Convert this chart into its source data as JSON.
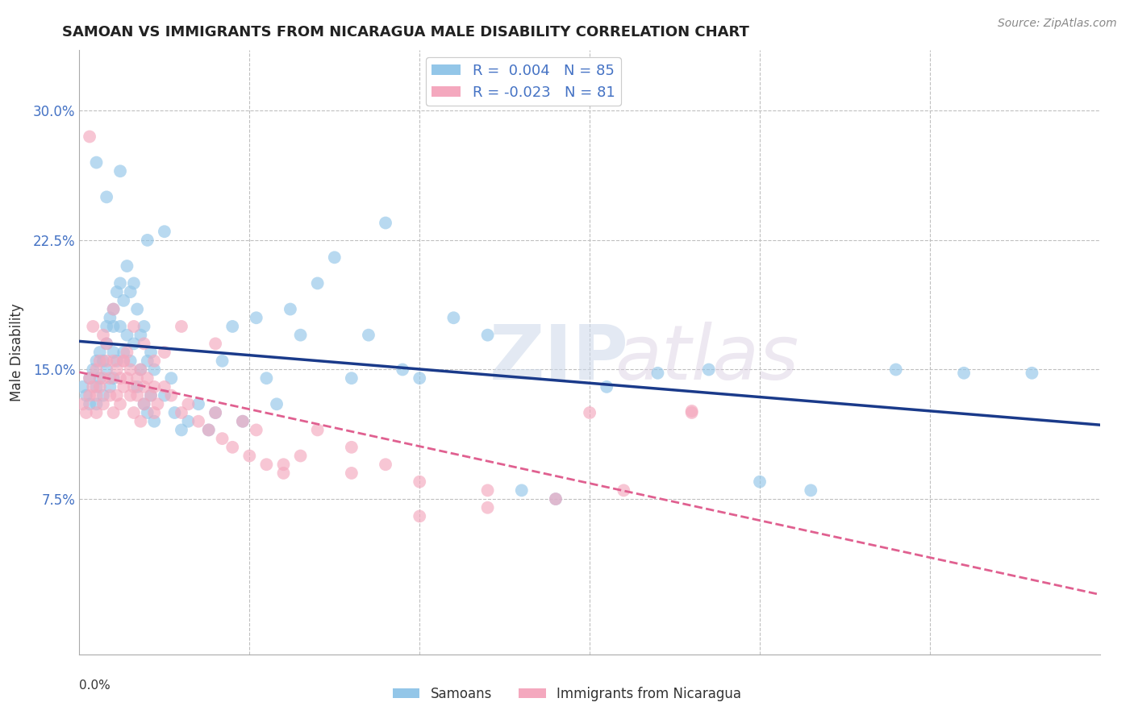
{
  "title": "SAMOAN VS IMMIGRANTS FROM NICARAGUA MALE DISABILITY CORRELATION CHART",
  "source": "Source: ZipAtlas.com",
  "ylabel": "Male Disability",
  "color_blue": "#93c6e8",
  "color_pink": "#f4a8be",
  "line_blue": "#1a3a8a",
  "line_pink": "#e06090",
  "xlim": [
    0.0,
    0.3
  ],
  "ylim": [
    -0.015,
    0.335
  ],
  "ytick_vals": [
    0.0,
    0.075,
    0.15,
    0.225,
    0.3
  ],
  "ytick_labels": [
    "",
    "7.5%",
    "15.0%",
    "22.5%",
    "30.0%"
  ],
  "xtick_vals": [
    0.0,
    0.05,
    0.1,
    0.15,
    0.2,
    0.25,
    0.3
  ],
  "samoans_x": [
    0.001,
    0.002,
    0.003,
    0.003,
    0.004,
    0.005,
    0.005,
    0.005,
    0.006,
    0.006,
    0.007,
    0.007,
    0.008,
    0.008,
    0.008,
    0.009,
    0.009,
    0.01,
    0.01,
    0.01,
    0.01,
    0.011,
    0.011,
    0.012,
    0.012,
    0.013,
    0.013,
    0.014,
    0.014,
    0.015,
    0.015,
    0.016,
    0.016,
    0.017,
    0.017,
    0.018,
    0.018,
    0.019,
    0.019,
    0.02,
    0.02,
    0.021,
    0.021,
    0.022,
    0.022,
    0.025,
    0.027,
    0.028,
    0.03,
    0.032,
    0.035,
    0.038,
    0.04,
    0.042,
    0.045,
    0.048,
    0.052,
    0.055,
    0.058,
    0.062,
    0.065,
    0.07,
    0.075,
    0.08,
    0.085,
    0.09,
    0.095,
    0.1,
    0.11,
    0.12,
    0.13,
    0.14,
    0.155,
    0.17,
    0.185,
    0.2,
    0.215,
    0.24,
    0.26,
    0.28,
    0.005,
    0.008,
    0.012,
    0.02,
    0.025
  ],
  "samoans_y": [
    0.14,
    0.135,
    0.13,
    0.145,
    0.15,
    0.14,
    0.155,
    0.13,
    0.145,
    0.16,
    0.155,
    0.135,
    0.165,
    0.15,
    0.175,
    0.18,
    0.14,
    0.175,
    0.16,
    0.185,
    0.145,
    0.195,
    0.155,
    0.2,
    0.175,
    0.19,
    0.16,
    0.21,
    0.17,
    0.195,
    0.155,
    0.2,
    0.165,
    0.185,
    0.14,
    0.17,
    0.15,
    0.175,
    0.13,
    0.155,
    0.125,
    0.16,
    0.135,
    0.15,
    0.12,
    0.135,
    0.145,
    0.125,
    0.115,
    0.12,
    0.13,
    0.115,
    0.125,
    0.155,
    0.175,
    0.12,
    0.18,
    0.145,
    0.13,
    0.185,
    0.17,
    0.2,
    0.215,
    0.145,
    0.17,
    0.235,
    0.15,
    0.145,
    0.18,
    0.17,
    0.08,
    0.075,
    0.14,
    0.148,
    0.15,
    0.085,
    0.08,
    0.15,
    0.148,
    0.148,
    0.27,
    0.25,
    0.265,
    0.225,
    0.23
  ],
  "nicaragua_x": [
    0.001,
    0.002,
    0.003,
    0.003,
    0.004,
    0.005,
    0.005,
    0.005,
    0.006,
    0.006,
    0.007,
    0.007,
    0.008,
    0.008,
    0.009,
    0.009,
    0.01,
    0.01,
    0.011,
    0.011,
    0.012,
    0.012,
    0.013,
    0.013,
    0.014,
    0.014,
    0.015,
    0.015,
    0.016,
    0.016,
    0.017,
    0.017,
    0.018,
    0.018,
    0.019,
    0.019,
    0.02,
    0.021,
    0.022,
    0.022,
    0.023,
    0.025,
    0.027,
    0.03,
    0.032,
    0.035,
    0.038,
    0.04,
    0.042,
    0.045,
    0.048,
    0.052,
    0.055,
    0.06,
    0.065,
    0.07,
    0.08,
    0.09,
    0.1,
    0.12,
    0.14,
    0.16,
    0.18,
    0.004,
    0.007,
    0.01,
    0.013,
    0.016,
    0.019,
    0.022,
    0.025,
    0.03,
    0.04,
    0.05,
    0.06,
    0.08,
    0.1,
    0.12,
    0.15,
    0.18,
    0.003
  ],
  "nicaragua_y": [
    0.13,
    0.125,
    0.135,
    0.145,
    0.14,
    0.135,
    0.15,
    0.125,
    0.14,
    0.155,
    0.145,
    0.13,
    0.155,
    0.165,
    0.145,
    0.135,
    0.155,
    0.125,
    0.135,
    0.15,
    0.145,
    0.13,
    0.155,
    0.14,
    0.16,
    0.145,
    0.135,
    0.15,
    0.14,
    0.125,
    0.145,
    0.135,
    0.15,
    0.12,
    0.14,
    0.13,
    0.145,
    0.135,
    0.14,
    0.125,
    0.13,
    0.14,
    0.135,
    0.125,
    0.13,
    0.12,
    0.115,
    0.125,
    0.11,
    0.105,
    0.12,
    0.115,
    0.095,
    0.09,
    0.1,
    0.115,
    0.105,
    0.095,
    0.085,
    0.08,
    0.075,
    0.08,
    0.125,
    0.175,
    0.17,
    0.185,
    0.155,
    0.175,
    0.165,
    0.155,
    0.16,
    0.175,
    0.165,
    0.1,
    0.095,
    0.09,
    0.065,
    0.07,
    0.125,
    0.126,
    0.285
  ]
}
